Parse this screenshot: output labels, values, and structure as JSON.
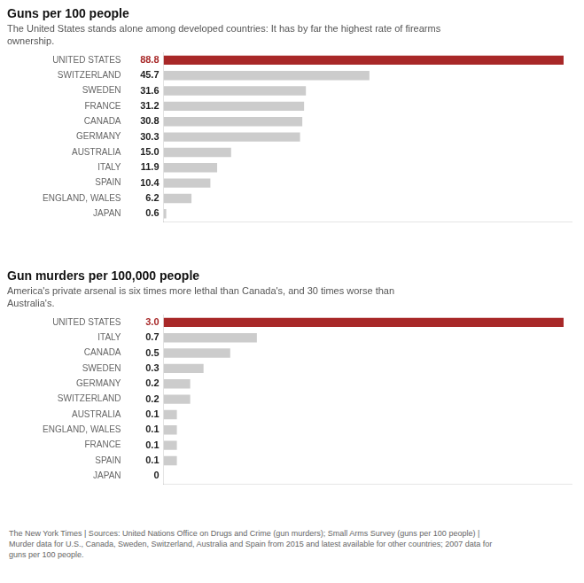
{
  "chart_data": [
    {
      "type": "bar",
      "orientation": "horizontal",
      "title": "Guns per 100 people",
      "subtitle": "The United States stands alone among developed countries: It has by far the highest rate of firearms\nownership.",
      "categories": [
        "UNITED STATES",
        "SWITZERLAND",
        "SWEDEN",
        "FRANCE",
        "CANADA",
        "GERMANY",
        "AUSTRALIA",
        "ITALY",
        "SPAIN",
        "ENGLAND, WALES",
        "JAPAN"
      ],
      "values": [
        88.8,
        45.7,
        31.6,
        31.2,
        30.8,
        30.3,
        15.0,
        11.9,
        10.4,
        6.2,
        0.6
      ],
      "value_labels": [
        "88.8",
        "45.7",
        "31.6",
        "31.2",
        "30.8",
        "30.3",
        "15.0",
        "11.9",
        "10.4",
        "6.2",
        "0.6"
      ],
      "colors": [
        "#a82828",
        "#cccccc",
        "#cccccc",
        "#cccccc",
        "#cccccc",
        "#cccccc",
        "#cccccc",
        "#cccccc",
        "#cccccc",
        "#cccccc",
        "#cccccc"
      ],
      "xlim": [
        0,
        90.576
      ],
      "grid": false,
      "tick_labels": "y",
      "data_labels": true
    },
    {
      "type": "bar",
      "orientation": "horizontal",
      "title": "Gun murders per 100,000 people",
      "subtitle": "America's private arsenal is six times more lethal than Canada's, and 30 times worse than\nAustralia's.",
      "categories": [
        "UNITED STATES",
        "ITALY",
        "CANADA",
        "SWEDEN",
        "GERMANY",
        "SWITZERLAND",
        "AUSTRALIA",
        "ENGLAND, WALES",
        "FRANCE",
        "SPAIN",
        "JAPAN"
      ],
      "values": [
        3.0,
        0.7,
        0.5,
        0.3,
        0.2,
        0.2,
        0.1,
        0.1,
        0.1,
        0.1,
        0.0
      ],
      "value_labels": [
        "3.0",
        "0.7",
        "0.5",
        "0.3",
        "0.2",
        "0.2",
        "0.1",
        "0.1",
        "0.1",
        "0.1",
        "0"
      ],
      "colors": [
        "#a82828",
        "#cccccc",
        "#cccccc",
        "#cccccc",
        "#cccccc",
        "#cccccc",
        "#cccccc",
        "#cccccc",
        "#cccccc",
        "#cccccc",
        "#cccccc"
      ],
      "xlim": [
        0,
        3.06
      ],
      "grid": false,
      "tick_labels": "y",
      "data_labels": true,
      "annotations": [
        "The New York Times | Sources: United Nations Office on Drugs and Crime (gun murders); Small Arms Survey (guns per 100 people)  |\nMurder data for U.S., Canada, Sweden, Switzerland, Australia and Spain from 2015 and latest available for other countries; 2007 data for\nguns per 100 people."
      ]
    }
  ]
}
